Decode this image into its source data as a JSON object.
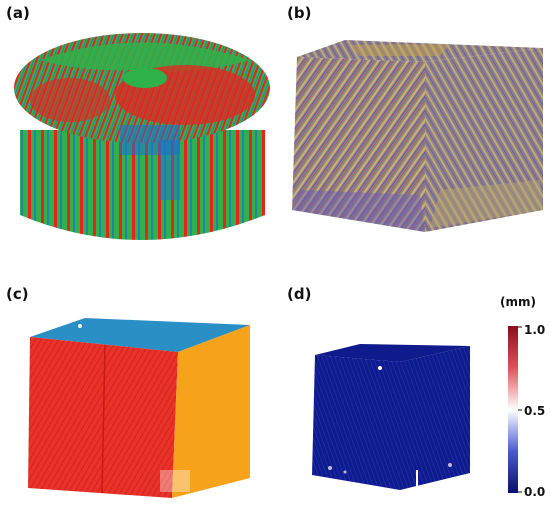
{
  "panels": [
    {
      "label": "(a)"
    },
    {
      "label": "(b)"
    },
    {
      "label": "(c)"
    },
    {
      "label": "(d)"
    }
  ],
  "colorbar": {
    "unit": "(mm)",
    "ticks": [
      "1.0",
      "0.5",
      "0.0"
    ],
    "colors": {
      "high": "#b2182b",
      "mid": "#ffffff",
      "low": "#0a0f7a"
    }
  },
  "colors": {
    "red": "#e8231f",
    "green": "#2fb24a",
    "blue": "#1e6fd0",
    "orange": "#f7a21b",
    "top_blue": "#2a8fc4",
    "dark_blue": "#0f1a8c"
  }
}
